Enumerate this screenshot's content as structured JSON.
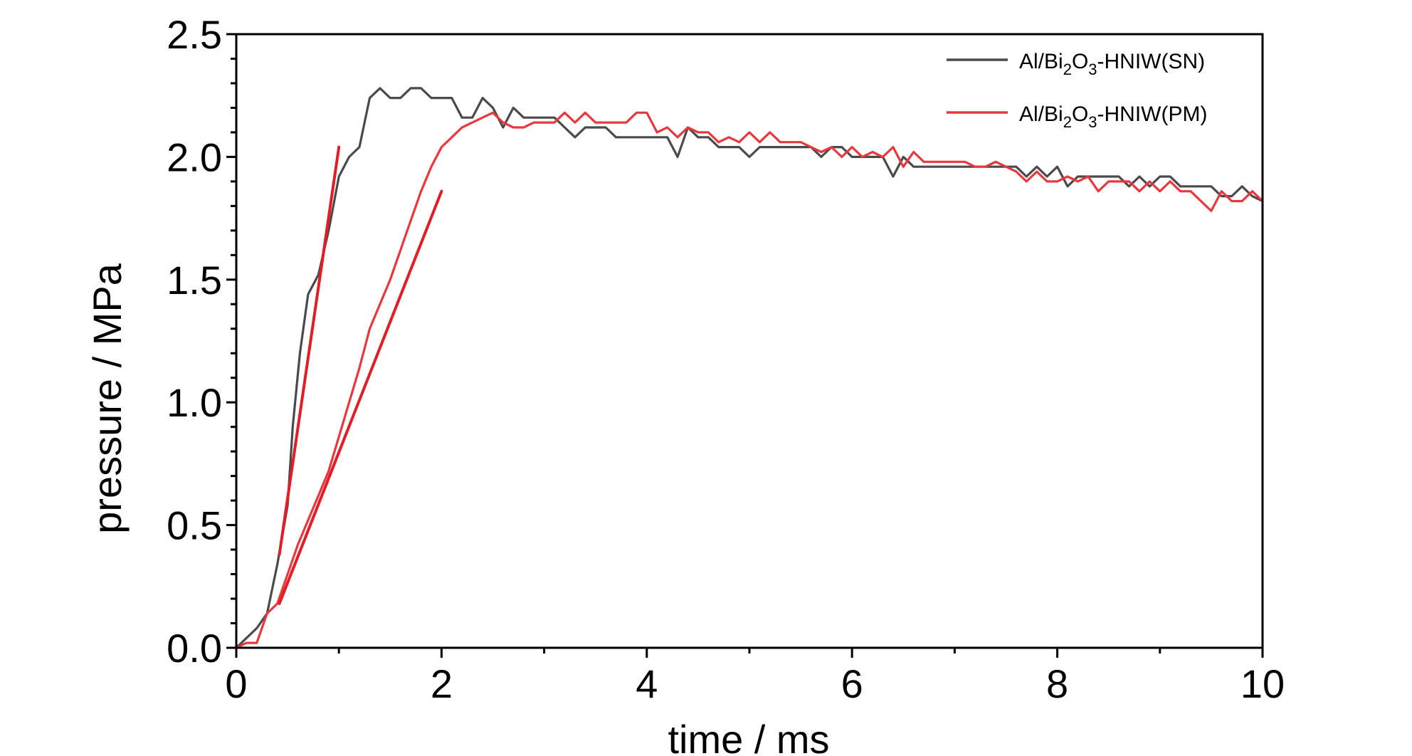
{
  "chart_data": {
    "type": "line",
    "xlabel": "time / ms",
    "ylabel": "pressure / MPa",
    "xlim": [
      0,
      10
    ],
    "ylim": [
      0,
      2.5
    ],
    "xticks": [
      "0",
      "2",
      "4",
      "6",
      "8",
      "10"
    ],
    "yticks": [
      "0.0",
      "0.5",
      "1.0",
      "1.5",
      "2.0",
      "2.5"
    ],
    "grid": false,
    "legend_position": "top-right",
    "series": [
      {
        "name": "Al/Bi2O3-HNIW(SN)",
        "legend": {
          "base": "Al/Bi",
          "s1": "2",
          "mid": "O",
          "s2": "3",
          "tail": "-HNIW(SN)"
        },
        "color": "#4a4a4a",
        "x": [
          0,
          0.1,
          0.2,
          0.3,
          0.4,
          0.5,
          0.55,
          0.62,
          0.7,
          0.8,
          0.9,
          1.0,
          1.1,
          1.2,
          1.3,
          1.4,
          1.5,
          1.6,
          1.7,
          1.8,
          1.9,
          2.0,
          2.1,
          2.2,
          2.3,
          2.4,
          2.5,
          2.6,
          2.7,
          2.8,
          2.9,
          3.0,
          3.1,
          3.2,
          3.3,
          3.4,
          3.5,
          3.6,
          3.7,
          3.8,
          3.9,
          4.0,
          4.1,
          4.2,
          4.3,
          4.4,
          4.5,
          4.6,
          4.7,
          4.8,
          4.9,
          5.0,
          5.1,
          5.2,
          5.3,
          5.4,
          5.5,
          5.6,
          5.7,
          5.8,
          5.9,
          6.0,
          6.1,
          6.2,
          6.3,
          6.4,
          6.5,
          6.6,
          6.7,
          6.8,
          6.9,
          7.0,
          7.1,
          7.2,
          7.3,
          7.4,
          7.5,
          7.6,
          7.7,
          7.8,
          7.9,
          8.0,
          8.1,
          8.2,
          8.3,
          8.4,
          8.5,
          8.6,
          8.7,
          8.8,
          8.9,
          9.0,
          9.1,
          9.2,
          9.3,
          9.4,
          9.5,
          9.6,
          9.7,
          9.8,
          9.9,
          10.0
        ],
        "y": [
          0,
          0.04,
          0.08,
          0.14,
          0.34,
          0.58,
          0.9,
          1.2,
          1.44,
          1.52,
          1.7,
          1.92,
          2.0,
          2.04,
          2.24,
          2.28,
          2.24,
          2.24,
          2.28,
          2.28,
          2.24,
          2.24,
          2.24,
          2.16,
          2.16,
          2.24,
          2.2,
          2.12,
          2.2,
          2.16,
          2.16,
          2.16,
          2.16,
          2.12,
          2.08,
          2.12,
          2.12,
          2.12,
          2.08,
          2.08,
          2.08,
          2.08,
          2.08,
          2.08,
          2.0,
          2.12,
          2.08,
          2.08,
          2.04,
          2.04,
          2.04,
          2.0,
          2.04,
          2.04,
          2.04,
          2.04,
          2.04,
          2.04,
          2.0,
          2.04,
          2.04,
          2.0,
          2.0,
          2.0,
          2.0,
          1.92,
          2.0,
          1.96,
          1.96,
          1.96,
          1.96,
          1.96,
          1.96,
          1.96,
          1.96,
          1.96,
          1.96,
          1.96,
          1.92,
          1.96,
          1.92,
          1.96,
          1.88,
          1.92,
          1.92,
          1.92,
          1.92,
          1.92,
          1.88,
          1.92,
          1.88,
          1.92,
          1.92,
          1.88,
          1.88,
          1.88,
          1.88,
          1.84,
          1.84,
          1.88,
          1.84,
          1.82
        ]
      },
      {
        "name": "Al/Bi2O3-HNIW(PM)",
        "legend": {
          "base": "Al/Bi",
          "s1": "2",
          "mid": "O",
          "s2": "3",
          "tail": "-HNIW(PM)"
        },
        "color": "#e8383d",
        "x": [
          0,
          0.1,
          0.2,
          0.3,
          0.4,
          0.5,
          0.6,
          0.7,
          0.8,
          0.9,
          1.0,
          1.1,
          1.2,
          1.3,
          1.4,
          1.5,
          1.6,
          1.7,
          1.8,
          1.9,
          2.0,
          2.1,
          2.2,
          2.3,
          2.4,
          2.5,
          2.6,
          2.7,
          2.8,
          2.9,
          3.0,
          3.1,
          3.2,
          3.3,
          3.4,
          3.5,
          3.6,
          3.7,
          3.8,
          3.9,
          4.0,
          4.1,
          4.2,
          4.3,
          4.4,
          4.5,
          4.6,
          4.7,
          4.8,
          4.9,
          5.0,
          5.1,
          5.2,
          5.3,
          5.4,
          5.5,
          5.6,
          5.7,
          5.8,
          5.9,
          6.0,
          6.1,
          6.2,
          6.3,
          6.4,
          6.5,
          6.6,
          6.7,
          6.8,
          6.9,
          7.0,
          7.1,
          7.2,
          7.3,
          7.4,
          7.5,
          7.6,
          7.7,
          7.8,
          7.9,
          8.0,
          8.1,
          8.2,
          8.3,
          8.4,
          8.5,
          8.6,
          8.7,
          8.8,
          8.9,
          9.0,
          9.1,
          9.2,
          9.3,
          9.4,
          9.5,
          9.6,
          9.7,
          9.8,
          9.9,
          10.0
        ],
        "y": [
          0,
          0.02,
          0.02,
          0.14,
          0.18,
          0.3,
          0.42,
          0.52,
          0.62,
          0.72,
          0.86,
          1.0,
          1.14,
          1.3,
          1.4,
          1.5,
          1.62,
          1.74,
          1.86,
          1.96,
          2.04,
          2.08,
          2.12,
          2.14,
          2.16,
          2.18,
          2.14,
          2.12,
          2.12,
          2.14,
          2.14,
          2.14,
          2.18,
          2.14,
          2.18,
          2.14,
          2.14,
          2.14,
          2.14,
          2.18,
          2.18,
          2.1,
          2.12,
          2.08,
          2.12,
          2.1,
          2.1,
          2.06,
          2.08,
          2.06,
          2.1,
          2.06,
          2.1,
          2.06,
          2.06,
          2.06,
          2.04,
          2.02,
          2.04,
          2.0,
          2.04,
          2.0,
          2.02,
          2.0,
          2.04,
          1.96,
          2.02,
          1.98,
          1.98,
          1.98,
          1.98,
          1.98,
          1.96,
          1.96,
          1.98,
          1.96,
          1.94,
          1.9,
          1.94,
          1.9,
          1.9,
          1.92,
          1.9,
          1.92,
          1.86,
          1.9,
          1.9,
          1.9,
          1.86,
          1.9,
          1.86,
          1.9,
          1.86,
          1.86,
          1.82,
          1.78,
          1.86,
          1.82,
          1.82,
          1.86,
          1.82
        ]
      }
    ],
    "fit_lines": [
      {
        "color": "#e11e26",
        "x": [
          0.42,
          1.0
        ],
        "y": [
          0.38,
          2.04
        ]
      },
      {
        "color": "#e11e26",
        "x": [
          0.42,
          2.0
        ],
        "y": [
          0.18,
          1.86
        ]
      }
    ]
  }
}
